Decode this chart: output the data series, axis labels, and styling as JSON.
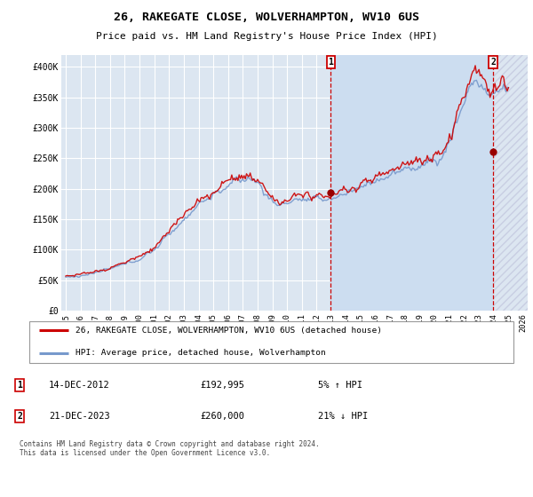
{
  "title": "26, RAKEGATE CLOSE, WOLVERHAMPTON, WV10 6US",
  "subtitle": "Price paid vs. HM Land Registry's House Price Index (HPI)",
  "background_color": "#ffffff",
  "plot_bg_color": "#dce6f1",
  "grid_color": "#ffffff",
  "shade_color": "#ccddf0",
  "hatch_color": "#aabbcc",
  "ylim": [
    0,
    420000
  ],
  "yticks": [
    0,
    50000,
    100000,
    150000,
    200000,
    250000,
    300000,
    350000,
    400000
  ],
  "ytick_labels": [
    "£0",
    "£50K",
    "£100K",
    "£150K",
    "£200K",
    "£250K",
    "£300K",
    "£350K",
    "£400K"
  ],
  "xmin_year": 1995,
  "xmax_year": 2026,
  "xtick_years": [
    1995,
    1996,
    1997,
    1998,
    1999,
    2000,
    2001,
    2002,
    2003,
    2004,
    2005,
    2006,
    2007,
    2008,
    2009,
    2010,
    2011,
    2012,
    2013,
    2014,
    2015,
    2016,
    2017,
    2018,
    2019,
    2020,
    2021,
    2022,
    2023,
    2024,
    2025,
    2026
  ],
  "sale1_x": 2012.95,
  "sale1_y": 192995,
  "sale2_x": 2023.96,
  "sale2_y": 260000,
  "legend_line1_color": "#cc0000",
  "legend_line2_color": "#7799cc",
  "legend_line1_label": "26, RAKEGATE CLOSE, WOLVERHAMPTON, WV10 6US (detached house)",
  "legend_line2_label": "HPI: Average price, detached house, Wolverhampton",
  "annotation1_date": "14-DEC-2012",
  "annotation1_price": "£192,995",
  "annotation1_hpi": "5% ↑ HPI",
  "annotation2_date": "21-DEC-2023",
  "annotation2_price": "£260,000",
  "annotation2_hpi": "21% ↓ HPI",
  "footnote": "Contains HM Land Registry data © Crown copyright and database right 2024.\nThis data is licensed under the Open Government Licence v3.0."
}
